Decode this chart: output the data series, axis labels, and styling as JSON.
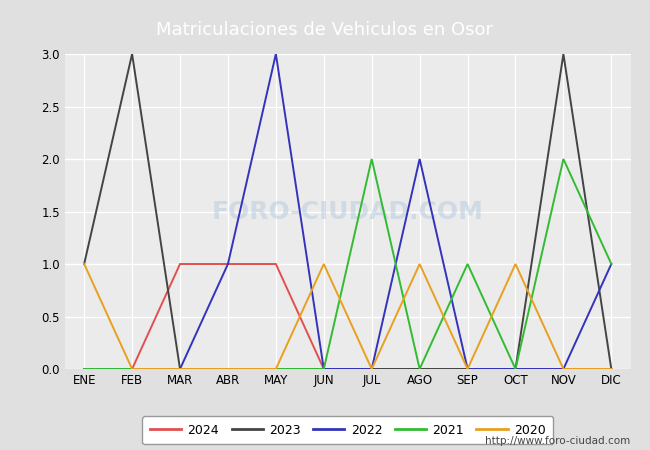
{
  "title": "Matriculaciones de Vehiculos en Osor",
  "months": [
    "ENE",
    "FEB",
    "MAR",
    "ABR",
    "MAY",
    "JUN",
    "JUL",
    "AGO",
    "SEP",
    "OCT",
    "NOV",
    "DIC"
  ],
  "series": {
    "2024": {
      "values": [
        0,
        0,
        1,
        1,
        1,
        0,
        0,
        0,
        0,
        0,
        0,
        0
      ],
      "color": "#e05050"
    },
    "2023": {
      "values": [
        1,
        3,
        0,
        0,
        0,
        0,
        0,
        0,
        0,
        0,
        3,
        0
      ],
      "color": "#444444"
    },
    "2022": {
      "values": [
        0,
        0,
        0,
        1,
        3,
        0,
        0,
        2,
        0,
        0,
        0,
        1
      ],
      "color": "#3333bb"
    },
    "2021": {
      "values": [
        0,
        0,
        0,
        0,
        0,
        0,
        2,
        0,
        1,
        0,
        2,
        1
      ],
      "color": "#33bb33"
    },
    "2020": {
      "values": [
        1,
        0,
        0,
        0,
        0,
        1,
        0,
        1,
        0,
        1,
        0,
        0
      ],
      "color": "#e8a020"
    }
  },
  "ylim": [
    0,
    3.0
  ],
  "yticks": [
    0.0,
    0.5,
    1.0,
    1.5,
    2.0,
    2.5,
    3.0
  ],
  "title_bg_color": "#5599dd",
  "title_text_color": "white",
  "fig_bg_color": "#e0e0e0",
  "axes_bg_color": "#ebebeb",
  "grid_color": "white",
  "watermark_text": "FORO-CIUDAD.COM",
  "url_text": "http://www.foro-ciudad.com",
  "legend_years": [
    "2024",
    "2023",
    "2022",
    "2021",
    "2020"
  ]
}
